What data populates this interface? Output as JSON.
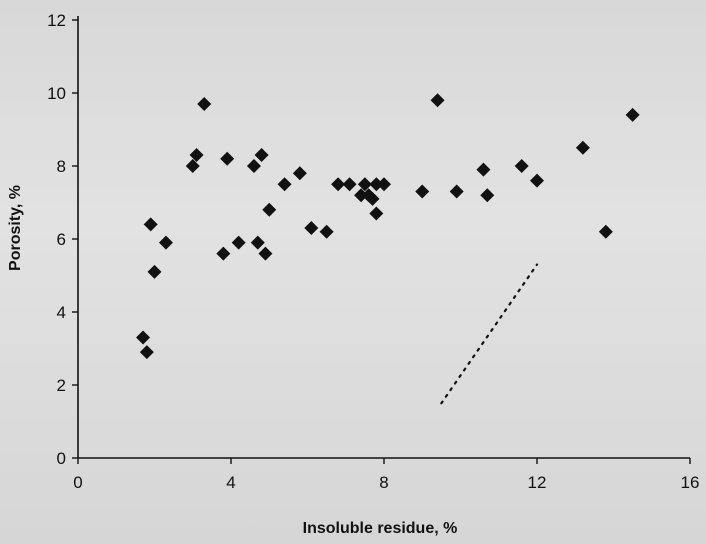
{
  "chart_data": {
    "type": "scatter",
    "xlabel": "Insoluble residue, %",
    "ylabel": "Porosity, %",
    "xlim": [
      0,
      16
    ],
    "ylim": [
      0,
      12
    ],
    "xticks": [
      0,
      4,
      8,
      12,
      16
    ],
    "yticks": [
      0,
      2,
      4,
      6,
      8,
      10,
      12
    ],
    "grid": false,
    "series": [
      {
        "marker": "diamond",
        "color": "#111111",
        "points": [
          [
            1.7,
            3.3
          ],
          [
            1.8,
            2.9
          ],
          [
            1.9,
            6.4
          ],
          [
            2.0,
            5.1
          ],
          [
            2.3,
            5.9
          ],
          [
            3.0,
            8.0
          ],
          [
            3.1,
            8.3
          ],
          [
            3.3,
            9.7
          ],
          [
            3.8,
            5.6
          ],
          [
            3.9,
            8.2
          ],
          [
            4.2,
            5.9
          ],
          [
            4.6,
            8.0
          ],
          [
            4.7,
            5.9
          ],
          [
            4.8,
            8.3
          ],
          [
            4.9,
            5.6
          ],
          [
            5.0,
            6.8
          ],
          [
            5.4,
            7.5
          ],
          [
            5.8,
            7.8
          ],
          [
            6.1,
            6.3
          ],
          [
            6.5,
            6.2
          ],
          [
            6.8,
            7.5
          ],
          [
            7.1,
            7.5
          ],
          [
            7.4,
            7.2
          ],
          [
            7.5,
            7.5
          ],
          [
            7.6,
            7.2
          ],
          [
            7.7,
            7.1
          ],
          [
            7.8,
            6.7
          ],
          [
            7.8,
            7.5
          ],
          [
            8.0,
            7.5
          ],
          [
            9.0,
            7.3
          ],
          [
            9.4,
            9.8
          ],
          [
            9.9,
            7.3
          ],
          [
            10.6,
            7.9
          ],
          [
            10.7,
            7.2
          ],
          [
            11.6,
            8.0
          ],
          [
            12.0,
            7.6
          ],
          [
            13.2,
            8.5
          ],
          [
            13.8,
            6.2
          ],
          [
            14.5,
            9.4
          ]
        ]
      }
    ],
    "trend_line": {
      "style": "dotted",
      "from": [
        9.5,
        1.5
      ],
      "to": [
        12.0,
        5.3
      ]
    }
  }
}
